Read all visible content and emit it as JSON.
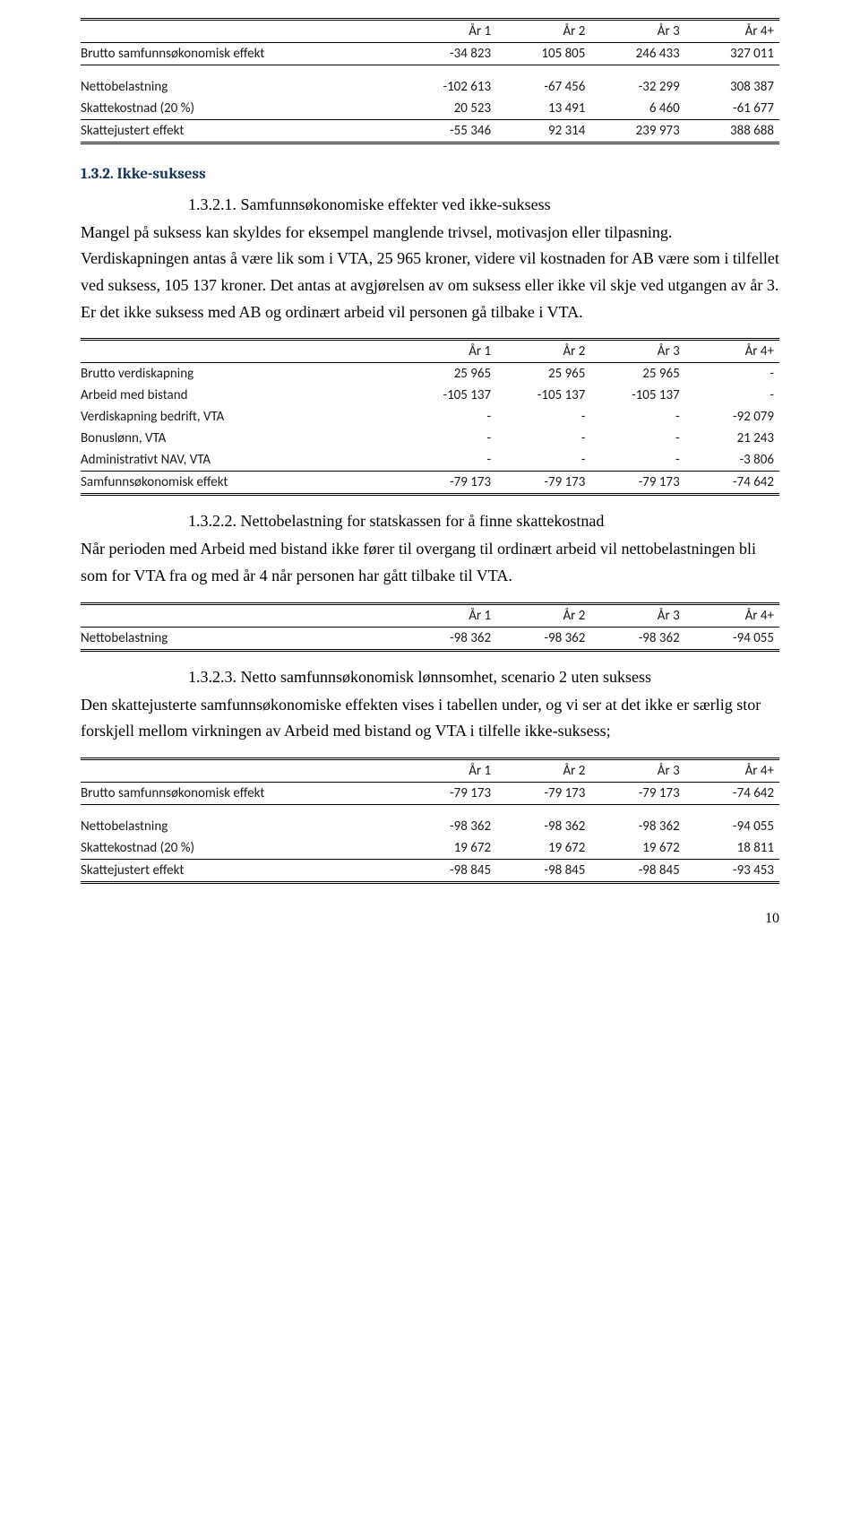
{
  "table1": {
    "headers": [
      "",
      "År 1",
      "År 2",
      "År 3",
      "År 4+"
    ],
    "rows": [
      {
        "label": "Brutto samfunnsøkonomisk effekt",
        "v": [
          "-34 823",
          "105 805",
          "246 433",
          "327 011"
        ]
      }
    ],
    "rows2": [
      {
        "label": "Nettobelastning",
        "v": [
          "-102 613",
          "-67 456",
          "-32 299",
          "308 387"
        ]
      },
      {
        "label": "Skattekostnad (20 %)",
        "v": [
          "20 523",
          "13 491",
          "6 460",
          "-61 677"
        ]
      },
      {
        "label": "Skattejustert effekt",
        "v": [
          "-55 346",
          "92 314",
          "239 973",
          "388 688"
        ]
      }
    ]
  },
  "section132": {
    "heading": "1.3.2. Ikke-suksess",
    "sub1": "1.3.2.1. Samfunnsøkonomiske effekter ved ikke-suksess",
    "para1": "Mangel på suksess kan skyldes for eksempel manglende trivsel, motivasjon eller tilpasning. Verdiskapningen antas å være lik som i VTA, 25 965 kroner, videre vil kostnaden for AB være som i tilfellet ved suksess, 105 137 kroner. Det antas at avgjørelsen av om suksess eller ikke vil skje ved utgangen av år 3. Er det ikke suksess med AB og ordinært arbeid vil personen gå tilbake i VTA."
  },
  "table2": {
    "headers": [
      "",
      "År 1",
      "År 2",
      "År 3",
      "År 4+"
    ],
    "rows": [
      {
        "label": "Brutto verdiskapning",
        "v": [
          "25 965",
          "25 965",
          "25 965",
          "-"
        ]
      },
      {
        "label": "Arbeid med bistand",
        "v": [
          "-105 137",
          "-105 137",
          "-105 137",
          "-"
        ]
      },
      {
        "label": "Verdiskapning bedrift, VTA",
        "v": [
          "-",
          "-",
          "-",
          "-92 079"
        ]
      },
      {
        "label": "Bonuslønn, VTA",
        "v": [
          "-",
          "-",
          "-",
          "21 243"
        ]
      },
      {
        "label": "Administrativt NAV, VTA",
        "v": [
          "-",
          "-",
          "-",
          "-3 806"
        ]
      },
      {
        "label": "Samfunnsøkonomisk effekt",
        "v": [
          "-79 173",
          "-79 173",
          "-79 173",
          "-74 642"
        ]
      }
    ]
  },
  "sub2": "1.3.2.2. Nettobelastning for statskassen for å finne skattekostnad",
  "para2": "Når perioden med Arbeid med bistand ikke fører til overgang til ordinært arbeid vil nettobelastningen bli som for VTA fra og med år 4 når personen har gått tilbake til VTA.",
  "table3": {
    "headers": [
      "",
      "År 1",
      "År 2",
      "År 3",
      "År 4+"
    ],
    "rows": [
      {
        "label": "Nettobelastning",
        "v": [
          "-98 362",
          "-98 362",
          "-98 362",
          "-94 055"
        ]
      }
    ]
  },
  "sub3": "1.3.2.3. Netto samfunnsøkonomisk lønnsomhet, scenario 2 uten suksess",
  "para3": "Den skattejusterte samfunnsøkonomiske effekten vises i tabellen under, og vi ser at det ikke er særlig stor forskjell mellom virkningen av Arbeid med bistand og VTA i tilfelle ikke-suksess;",
  "table4": {
    "headers": [
      "",
      "År 1",
      "År 2",
      "År 3",
      "År 4+"
    ],
    "rows": [
      {
        "label": "Brutto samfunnsøkonomisk effekt",
        "v": [
          "-79 173",
          "-79 173",
          "-79 173",
          "-74 642"
        ]
      }
    ],
    "rows2": [
      {
        "label": "Nettobelastning",
        "v": [
          "-98 362",
          "-98 362",
          "-98 362",
          "-94 055"
        ]
      },
      {
        "label": "Skattekostnad (20 %)",
        "v": [
          "19 672",
          "19 672",
          "19 672",
          "18 811"
        ]
      },
      {
        "label": "Skattejustert effekt",
        "v": [
          "-98 845",
          "-98 845",
          "-98 845",
          "-93 453"
        ]
      }
    ]
  },
  "pageNumber": "10"
}
